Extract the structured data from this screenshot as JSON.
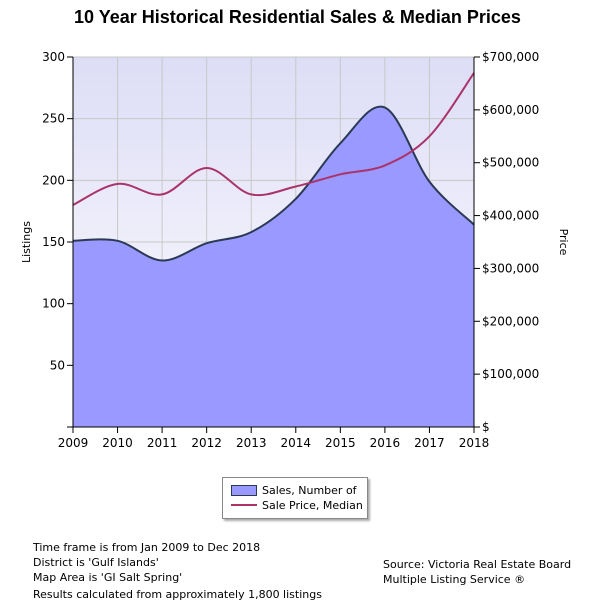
{
  "chart_data": {
    "type": "area+line",
    "title": "10 Year Historical Residential Sales & Median Prices",
    "xlabel": "",
    "ylabel": "Listings",
    "y2label": "Price",
    "categories": [
      "2009",
      "2010",
      "2011",
      "2012",
      "2013",
      "2014",
      "2015",
      "2016",
      "2017",
      "2018"
    ],
    "ylim": [
      0,
      300
    ],
    "y_ticks": [
      50,
      100,
      150,
      200,
      250,
      300
    ],
    "y2lim": [
      0,
      700000
    ],
    "y2_ticks": [
      0,
      100000,
      200000,
      300000,
      400000,
      500000,
      600000,
      700000
    ],
    "y2_tick_labels": [
      "$",
      "$100,000",
      "$200,000",
      "$300,000",
      "$400,000",
      "$500,000",
      "$600,000",
      "$700,000"
    ],
    "grid": true,
    "legend_position": "bottom-center",
    "series": [
      {
        "name": "Sales, Number of",
        "type": "area",
        "axis": "left",
        "color": "#9999ff",
        "stroke": "#2a3a55",
        "values": [
          151,
          151,
          135,
          149,
          158,
          185,
          230,
          259,
          199,
          164
        ]
      },
      {
        "name": "Sale Price, Median",
        "type": "line",
        "axis": "right",
        "color": "#aa336a",
        "values": [
          420000,
          460000,
          440000,
          490000,
          440000,
          455000,
          478000,
          495000,
          550000,
          670000
        ]
      }
    ]
  },
  "notes": [
    "Time frame is from Jan 2009 to Dec 2018",
    "District is 'Gulf Islands'",
    "Map Area is 'GI Salt Spring'",
    "Results calculated from approximately 1,800 listings"
  ],
  "source": [
    "Source: Victoria Real Estate Board",
    "Multiple Listing Service ®"
  ]
}
